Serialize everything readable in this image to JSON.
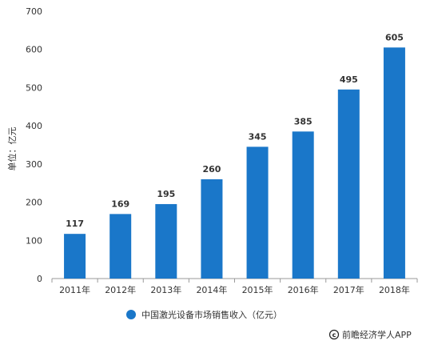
{
  "chart_data": {
    "type": "bar",
    "title": "",
    "xlabel": "",
    "ylabel": "单位：亿元",
    "categories": [
      "2011年",
      "2012年",
      "2013年",
      "2014年",
      "2015年",
      "2016年",
      "2017年",
      "2018年"
    ],
    "series": [
      {
        "name": "中国激光设备市场销售收入（亿元）",
        "values": [
          117,
          169,
          195,
          260,
          345,
          385,
          495,
          605
        ]
      }
    ],
    "ylim": [
      0,
      700
    ],
    "yticks": [
      0,
      100,
      200,
      300,
      400,
      500,
      600,
      700
    ],
    "data_labels": true,
    "grid": false,
    "legend_position": "bottom-center",
    "colors": {
      "bar": "#1a77c9",
      "axis": "#999999",
      "text": "#333333",
      "source_icon": "#222222"
    }
  },
  "source": {
    "icon": "copyright-icon",
    "text": "前瞻经济学人APP"
  }
}
